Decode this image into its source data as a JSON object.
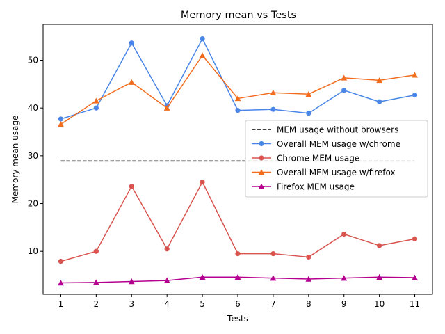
{
  "chart_data": {
    "type": "line",
    "title": "Memory mean vs Tests",
    "xlabel": "Tests",
    "ylabel": "Memory mean usage",
    "x": [
      1,
      2,
      3,
      4,
      5,
      6,
      7,
      8,
      9,
      10,
      11
    ],
    "xlim": [
      0.5,
      11.5
    ],
    "ylim": [
      1.0,
      57.5
    ],
    "yticks": [
      10,
      20,
      30,
      40,
      50
    ],
    "grid": false,
    "legend_position": "center-right",
    "series": [
      {
        "name": "MEM usage without browsers",
        "values": [
          28.9,
          28.9,
          28.9,
          28.9,
          28.9,
          28.9,
          28.9,
          28.9,
          28.9,
          28.9,
          28.9
        ],
        "color": "#000000",
        "style": "dashed",
        "marker": "none"
      },
      {
        "name": "Overall MEM usage w/chrome",
        "values": [
          37.7,
          40.0,
          53.6,
          40.5,
          54.5,
          39.5,
          39.7,
          38.9,
          43.7,
          41.3,
          42.7
        ],
        "color": "#4a86e8",
        "style": "solid",
        "marker": "circle"
      },
      {
        "name": "Chrome MEM usage",
        "values": [
          7.9,
          10.0,
          23.6,
          10.5,
          24.5,
          9.5,
          9.5,
          8.8,
          13.6,
          11.2,
          12.6
        ],
        "color": "#d9534f",
        "style": "solid",
        "marker": "circle"
      },
      {
        "name": "Overall MEM usage w/firefox",
        "values": [
          36.6,
          41.5,
          45.4,
          40.0,
          51.0,
          42.0,
          43.2,
          42.9,
          46.3,
          45.8,
          46.9
        ],
        "color": "#f26c1d",
        "style": "solid",
        "marker": "triangle"
      },
      {
        "name": "Firefox MEM usage",
        "values": [
          3.4,
          3.5,
          3.7,
          3.9,
          4.6,
          4.6,
          4.4,
          4.2,
          4.4,
          4.6,
          4.5
        ],
        "color": "#b5008f",
        "style": "solid",
        "marker": "triangle"
      }
    ]
  }
}
